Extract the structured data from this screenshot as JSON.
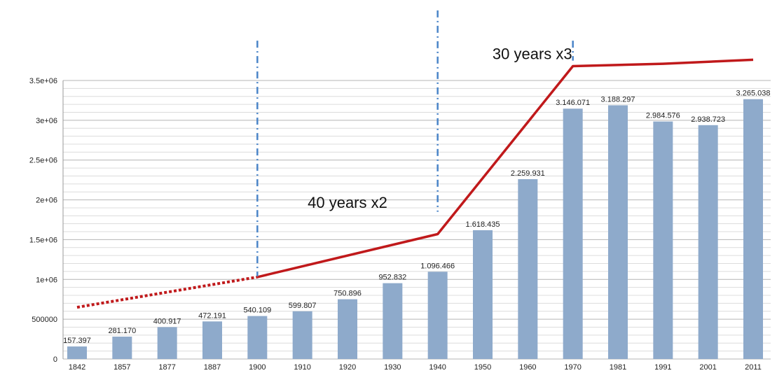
{
  "chart_data": {
    "type": "bar",
    "categories": [
      "1842",
      "1857",
      "1877",
      "1887",
      "1900",
      "1910",
      "1920",
      "1930",
      "1940",
      "1950",
      "1960",
      "1970",
      "1981",
      "1991",
      "2001",
      "2011"
    ],
    "values": [
      157397,
      281170,
      400917,
      472191,
      540109,
      599807,
      750896,
      952832,
      1096466,
      1618435,
      2259931,
      3146071,
      3188297,
      2984576,
      2938723,
      3265038
    ],
    "value_labels": [
      "157.397",
      "281.170",
      "400.917",
      "472.191",
      "540.109",
      "599.807",
      "750.896",
      "952.832",
      "1.096.466",
      "1.618.435",
      "2.259.931",
      "3.146.071",
      "3.188.297",
      "2.984.576",
      "2.938.723",
      "3.265.038"
    ],
    "ylim": [
      0,
      3500000
    ],
    "yticks": [
      0,
      500000,
      1000000,
      1500000,
      2000000,
      2500000,
      3000000,
      3500000
    ],
    "ytick_labels": [
      "0",
      "500000",
      "1e+06",
      "1.5e+06",
      "2e+06",
      "2.5e+06",
      "3e+06",
      "3.5e+06"
    ],
    "grid": true,
    "bar_color": "#8eaacb",
    "trend_color": "#c0191b",
    "marker_color": "#4a84c8",
    "trend": {
      "dotted": [
        [
          1842,
          650000
        ],
        [
          1900,
          1030000
        ]
      ],
      "solid": [
        [
          1900,
          1030000
        ],
        [
          1940,
          1570000
        ],
        [
          1970,
          3680000
        ],
        [
          1991,
          3710000
        ],
        [
          2011,
          3760000
        ]
      ]
    },
    "annotations": [
      {
        "text": "40 years x2",
        "x": 1920,
        "y": 1900000
      },
      {
        "text": "30 years x3",
        "x": 1961,
        "y": 3770000
      }
    ],
    "markers": [
      {
        "x": 1900,
        "y_from": 4000000,
        "y_to": 1040000
      },
      {
        "x": 1940,
        "y_from": 4380000,
        "y_to": 1850000
      },
      {
        "x": 1970,
        "y_from": 4000000,
        "y_to": 3750000
      }
    ]
  }
}
